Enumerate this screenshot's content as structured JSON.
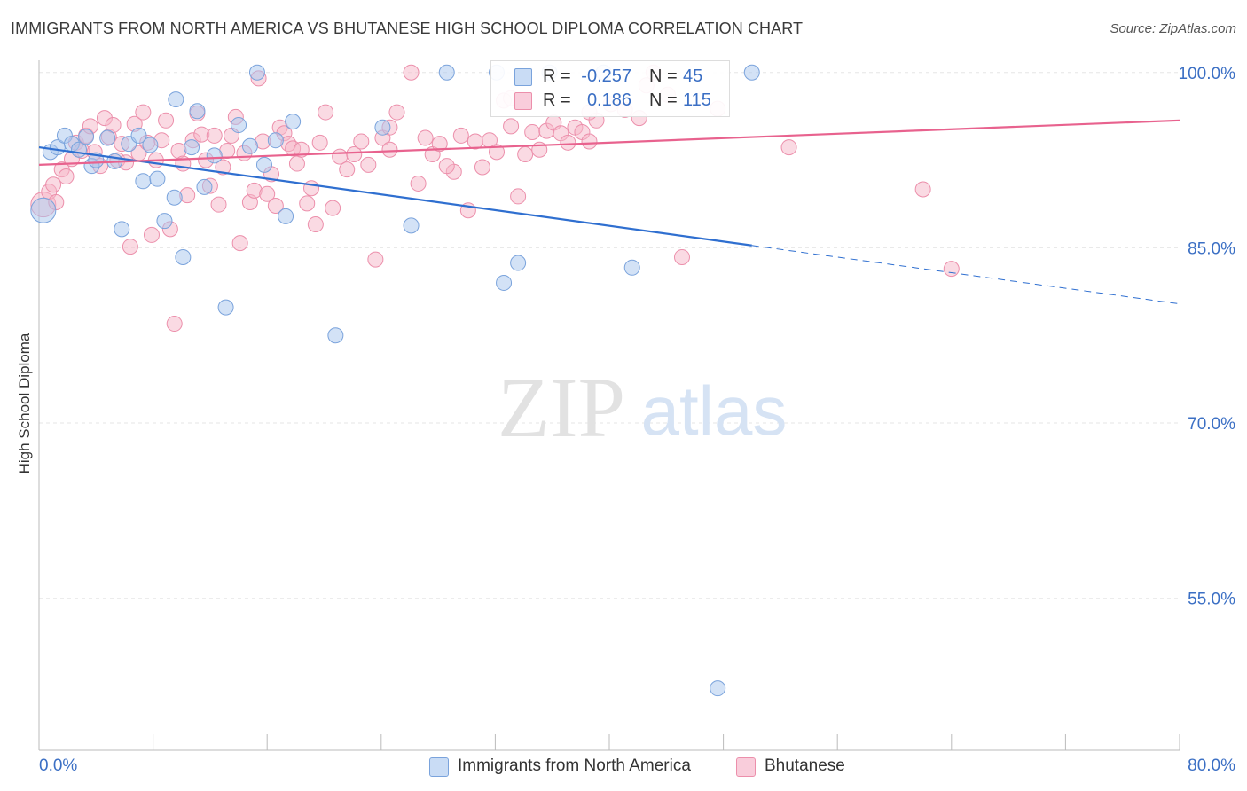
{
  "header": {
    "title": "IMMIGRANTS FROM NORTH AMERICA VS BHUTANESE HIGH SCHOOL DIPLOMA CORRELATION CHART",
    "source": "Source: ZipAtlas.com"
  },
  "watermark": {
    "zip": "ZIP",
    "atlas": "atlas"
  },
  "legend": {
    "rows": [
      {
        "r_label": "R =",
        "r_value": "-0.257",
        "n_label": "N =",
        "n_value": "45",
        "color": "#a8c6ee"
      },
      {
        "r_label": "R =",
        "r_value": "0.186",
        "n_label": "N =",
        "n_value": "115",
        "color": "#f5b6c8"
      }
    ]
  },
  "bottom_legend": [
    {
      "label": "Immigrants from North America",
      "color": "#a8c6ee"
    },
    {
      "label": "Bhutanese",
      "color": "#f5b6c8"
    }
  ],
  "chart_data": {
    "type": "scatter",
    "ylabel": "High School Diploma",
    "xlim": [
      0,
      80
    ],
    "ylim": [
      42,
      101.5
    ],
    "x_tick_labels": {
      "min": "0.0%",
      "max": "80.0%"
    },
    "y_ticks": [
      {
        "value": 100,
        "label": "100.0%"
      },
      {
        "value": 85,
        "label": "85.0%"
      },
      {
        "value": 70,
        "label": "70.0%"
      },
      {
        "value": 55,
        "label": "55.0%"
      }
    ],
    "grid": true,
    "series": [
      {
        "key": "north_america",
        "color": "#a8c6ee",
        "stroke": "#7aa3dc",
        "line_color": "#2f6fd0",
        "trend": {
          "x0": 0,
          "y0": 93.6,
          "x1": 50,
          "y1": 85.2,
          "dash_to_x": 80,
          "dash_to_y": 80.2
        },
        "points": [
          [
            0.3,
            88.2
          ],
          [
            0.8,
            93.2
          ],
          [
            1.3,
            93.6
          ],
          [
            1.8,
            94.6
          ],
          [
            2.3,
            93.9
          ],
          [
            2.8,
            93.4
          ],
          [
            3.3,
            94.5
          ],
          [
            3.7,
            92.0
          ],
          [
            4.0,
            92.5
          ],
          [
            4.8,
            94.4
          ],
          [
            5.3,
            92.4
          ],
          [
            5.8,
            86.6
          ],
          [
            6.3,
            93.9
          ],
          [
            7.0,
            94.6
          ],
          [
            7.3,
            90.7
          ],
          [
            7.8,
            93.8
          ],
          [
            8.3,
            90.9
          ],
          [
            8.8,
            87.3
          ],
          [
            9.5,
            89.3
          ],
          [
            9.6,
            97.7
          ],
          [
            10.1,
            84.2
          ],
          [
            10.7,
            93.6
          ],
          [
            11.1,
            96.7
          ],
          [
            11.6,
            90.2
          ],
          [
            12.3,
            92.9
          ],
          [
            13.1,
            79.9
          ],
          [
            14.0,
            95.5
          ],
          [
            14.8,
            93.7
          ],
          [
            15.3,
            100.0
          ],
          [
            15.8,
            92.1
          ],
          [
            16.6,
            94.2
          ],
          [
            17.3,
            87.7
          ],
          [
            17.8,
            95.8
          ],
          [
            20.8,
            77.5
          ],
          [
            24.1,
            95.3
          ],
          [
            26.1,
            86.9
          ],
          [
            28.6,
            100.0
          ],
          [
            32.1,
            100.0
          ],
          [
            32.6,
            82.0
          ],
          [
            33.6,
            83.7
          ],
          [
            35.8,
            100.0
          ],
          [
            39.6,
            100.0
          ],
          [
            41.6,
            83.3
          ],
          [
            50.0,
            100.0
          ],
          [
            47.6,
            47.3
          ]
        ]
      },
      {
        "key": "bhutanese",
        "color": "#f5b6c8",
        "stroke": "#ec8fab",
        "line_color": "#e8628e",
        "trend": {
          "x0": 0,
          "y0": 92.1,
          "x1": 80,
          "y1": 95.9
        },
        "points": [
          [
            0.3,
            88.7
          ],
          [
            0.7,
            89.8
          ],
          [
            1.0,
            90.4
          ],
          [
            1.2,
            88.9
          ],
          [
            1.6,
            91.7
          ],
          [
            1.9,
            91.1
          ],
          [
            2.3,
            92.6
          ],
          [
            2.6,
            94.0
          ],
          [
            3.0,
            93.3
          ],
          [
            3.3,
            94.6
          ],
          [
            3.6,
            95.4
          ],
          [
            3.9,
            93.2
          ],
          [
            4.3,
            92.0
          ],
          [
            4.6,
            96.1
          ],
          [
            4.9,
            94.5
          ],
          [
            5.2,
            95.5
          ],
          [
            5.5,
            92.5
          ],
          [
            5.8,
            93.9
          ],
          [
            6.1,
            92.3
          ],
          [
            6.4,
            85.1
          ],
          [
            6.7,
            95.6
          ],
          [
            7.0,
            93.1
          ],
          [
            7.3,
            96.6
          ],
          [
            7.6,
            94.0
          ],
          [
            7.9,
            86.1
          ],
          [
            8.2,
            92.5
          ],
          [
            8.6,
            94.2
          ],
          [
            8.9,
            95.9
          ],
          [
            9.2,
            86.6
          ],
          [
            9.5,
            78.5
          ],
          [
            9.8,
            93.3
          ],
          [
            10.1,
            92.2
          ],
          [
            10.4,
            89.5
          ],
          [
            10.8,
            94.2
          ],
          [
            11.1,
            96.5
          ],
          [
            11.4,
            94.7
          ],
          [
            11.7,
            92.5
          ],
          [
            12.0,
            90.3
          ],
          [
            12.3,
            94.6
          ],
          [
            12.6,
            88.7
          ],
          [
            12.9,
            91.9
          ],
          [
            13.2,
            93.3
          ],
          [
            13.5,
            94.6
          ],
          [
            13.8,
            96.2
          ],
          [
            14.1,
            85.4
          ],
          [
            14.4,
            93.1
          ],
          [
            14.8,
            88.9
          ],
          [
            15.1,
            89.9
          ],
          [
            15.4,
            99.5
          ],
          [
            15.7,
            94.1
          ],
          [
            16.0,
            89.6
          ],
          [
            16.3,
            91.3
          ],
          [
            16.6,
            88.6
          ],
          [
            16.9,
            95.3
          ],
          [
            17.2,
            94.8
          ],
          [
            17.5,
            93.9
          ],
          [
            17.8,
            93.5
          ],
          [
            18.1,
            92.2
          ],
          [
            18.4,
            93.4
          ],
          [
            18.8,
            88.8
          ],
          [
            19.1,
            90.1
          ],
          [
            19.4,
            87.0
          ],
          [
            19.7,
            94.0
          ],
          [
            20.1,
            96.6
          ],
          [
            20.6,
            88.4
          ],
          [
            21.1,
            92.8
          ],
          [
            21.6,
            91.7
          ],
          [
            22.1,
            93.0
          ],
          [
            22.6,
            94.1
          ],
          [
            23.1,
            92.1
          ],
          [
            23.6,
            84.0
          ],
          [
            24.1,
            94.4
          ],
          [
            24.6,
            93.4
          ],
          [
            25.1,
            96.6
          ],
          [
            26.1,
            100.0
          ],
          [
            26.6,
            90.5
          ],
          [
            27.1,
            94.4
          ],
          [
            27.6,
            93.0
          ],
          [
            28.1,
            93.9
          ],
          [
            29.1,
            91.5
          ],
          [
            29.6,
            94.6
          ],
          [
            30.1,
            88.2
          ],
          [
            30.6,
            94.1
          ],
          [
            31.1,
            91.9
          ],
          [
            31.6,
            94.2
          ],
          [
            32.1,
            93.2
          ],
          [
            32.6,
            97.6
          ],
          [
            33.1,
            95.4
          ],
          [
            33.6,
            89.4
          ],
          [
            34.1,
            93.0
          ],
          [
            34.6,
            94.9
          ],
          [
            35.1,
            93.4
          ],
          [
            35.6,
            95.0
          ],
          [
            36.1,
            95.7
          ],
          [
            36.6,
            94.8
          ],
          [
            37.1,
            94.0
          ],
          [
            37.6,
            95.3
          ],
          [
            38.1,
            94.9
          ],
          [
            38.6,
            94.1
          ],
          [
            39.1,
            95.9
          ],
          [
            40.1,
            97.3
          ],
          [
            41.1,
            96.8
          ],
          [
            42.1,
            96.1
          ],
          [
            43.1,
            100.0
          ],
          [
            44.1,
            98.1
          ],
          [
            45.1,
            84.2
          ],
          [
            47.6,
            96.9
          ],
          [
            52.6,
            93.6
          ],
          [
            62.0,
            90.0
          ],
          [
            64.0,
            83.2
          ],
          [
            24.6,
            95.3
          ],
          [
            28.6,
            92.0
          ],
          [
            33.1,
            97.8
          ],
          [
            38.6,
            96.6
          ],
          [
            42.6,
            98.9
          ]
        ]
      }
    ]
  }
}
